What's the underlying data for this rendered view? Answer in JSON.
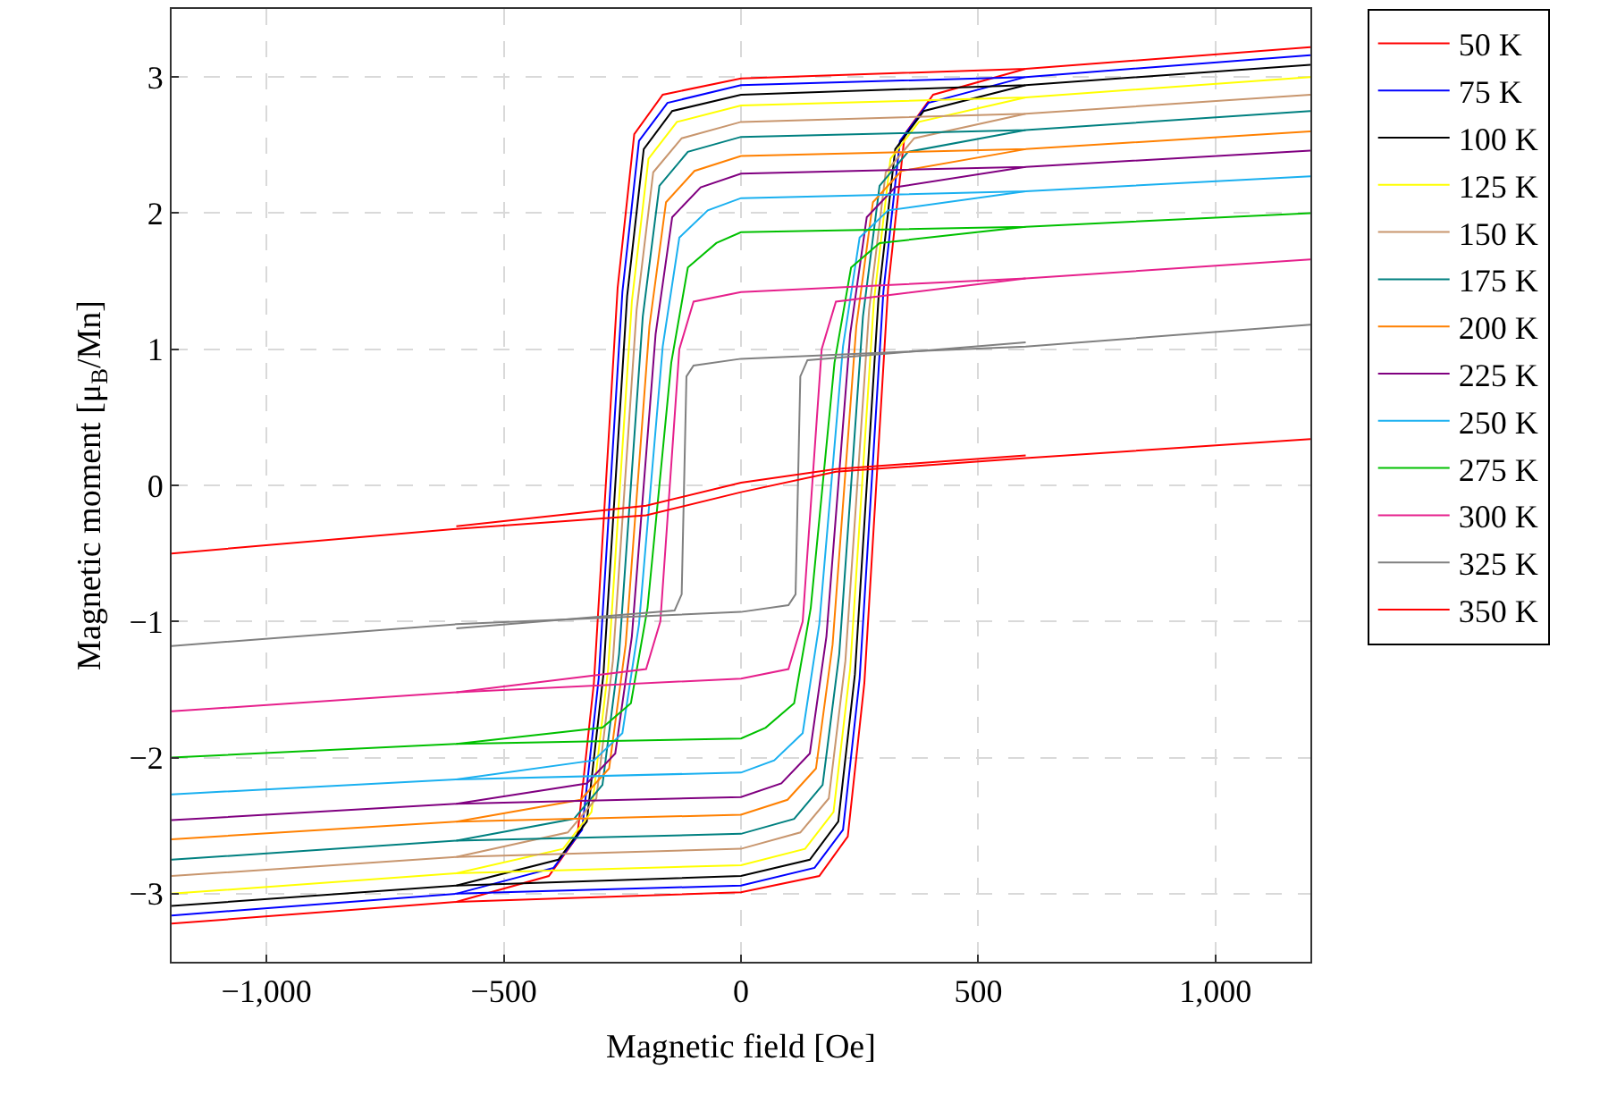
{
  "chart_data": {
    "type": "line",
    "xlabel": "Magnetic field [Oe]",
    "ylabel": "Magnetic moment [μ$_{B}$/Mn]",
    "xlim": [
      -1200,
      1200
    ],
    "xticks": [
      {
        "value": -1000,
        "label": "−1,000"
      },
      {
        "value": -500,
        "label": "−500"
      },
      0,
      500,
      {
        "value": 1000,
        "label": "1,000"
      }
    ],
    "ylim": [
      -3.5,
      3.5
    ],
    "yticks": [
      {
        "value": -3,
        "label": "−3"
      },
      {
        "value": -2,
        "label": "−2"
      },
      {
        "value": -1,
        "label": "−1"
      },
      0,
      1,
      2,
      3
    ],
    "grid": true,
    "legend": "top right",
    "marker": "none",
    "line_style": "solid",
    "series": [
      {
        "name": "50 K",
        "color": "#ff0000",
        "x": [
          -1200,
          -600,
          0,
          165,
          225,
          260,
          285,
          310,
          345,
          405,
          600
        ],
        "values": [
          -3.22,
          -3.06,
          -2.99,
          -2.87,
          -2.58,
          -1.45,
          0,
          1.45,
          2.58,
          2.87,
          3.06
        ]
      },
      {
        "color": "#ff0000",
        "x": [
          -600,
          -405,
          -345,
          -310,
          -285,
          -260,
          -225,
          -165,
          0,
          600,
          1200
        ],
        "values": [
          -3.06,
          -2.87,
          -2.58,
          -1.45,
          0,
          1.45,
          2.58,
          2.87,
          2.99,
          3.06,
          3.22
        ]
      },
      {
        "name": "75 K",
        "color": "#0000ff",
        "x": [
          -1200,
          -600,
          0,
          155,
          215,
          250,
          275,
          300,
          335,
          395,
          600
        ],
        "values": [
          -3.16,
          -3.0,
          -2.94,
          -2.81,
          -2.53,
          -1.42,
          0,
          1.42,
          2.53,
          2.81,
          3.0
        ]
      },
      {
        "color": "#0000ff",
        "x": [
          -600,
          -395,
          -335,
          -300,
          -275,
          -250,
          -215,
          -155,
          0,
          600,
          1200
        ],
        "values": [
          -3.0,
          -2.81,
          -2.53,
          -1.42,
          0,
          1.42,
          2.53,
          2.81,
          2.94,
          3.0,
          3.16
        ]
      },
      {
        "name": "100 K",
        "color": "#000000",
        "x": [
          -1200,
          -600,
          0,
          145,
          205,
          240,
          265,
          290,
          325,
          385,
          600
        ],
        "values": [
          -3.09,
          -2.94,
          -2.87,
          -2.75,
          -2.47,
          -1.39,
          0,
          1.39,
          2.47,
          2.75,
          2.94
        ]
      },
      {
        "color": "#000000",
        "x": [
          -600,
          -385,
          -325,
          -290,
          -265,
          -240,
          -205,
          -145,
          0,
          600,
          1200
        ],
        "values": [
          -2.94,
          -2.75,
          -2.47,
          -1.39,
          0,
          1.39,
          2.47,
          2.75,
          2.87,
          2.94,
          3.09
        ]
      },
      {
        "name": "125 K",
        "color": "#ffff00",
        "x": [
          -1200,
          -600,
          0,
          135,
          195,
          230,
          255,
          280,
          315,
          375,
          600
        ],
        "values": [
          -3.0,
          -2.85,
          -2.79,
          -2.67,
          -2.4,
          -1.35,
          0,
          1.35,
          2.4,
          2.67,
          2.85
        ]
      },
      {
        "color": "#ffff00",
        "x": [
          -600,
          -375,
          -315,
          -280,
          -255,
          -230,
          -195,
          -135,
          0,
          600,
          1200
        ],
        "values": [
          -2.85,
          -2.67,
          -2.4,
          -1.35,
          0,
          1.35,
          2.4,
          2.67,
          2.79,
          2.85,
          3.0
        ]
      },
      {
        "name": "150 K",
        "color": "#c8966e",
        "x": [
          -1200,
          -600,
          0,
          125,
          185,
          220,
          245,
          270,
          305,
          365,
          600
        ],
        "values": [
          -2.87,
          -2.73,
          -2.67,
          -2.55,
          -2.3,
          -1.29,
          0,
          1.29,
          2.3,
          2.55,
          2.73
        ]
      },
      {
        "color": "#c8966e",
        "x": [
          -600,
          -365,
          -305,
          -270,
          -245,
          -220,
          -185,
          -125,
          0,
          600,
          1200
        ],
        "values": [
          -2.73,
          -2.55,
          -2.3,
          -1.29,
          0,
          1.29,
          2.3,
          2.55,
          2.67,
          2.73,
          2.87
        ]
      },
      {
        "name": "175 K",
        "color": "#008080",
        "x": [
          -1200,
          -600,
          0,
          112,
          172,
          207,
          232,
          257,
          292,
          352,
          600
        ],
        "values": [
          -2.75,
          -2.61,
          -2.56,
          -2.45,
          -2.2,
          -1.24,
          0,
          1.24,
          2.2,
          2.45,
          2.61
        ]
      },
      {
        "color": "#008080",
        "x": [
          -600,
          -352,
          -292,
          -257,
          -232,
          -207,
          -172,
          -112,
          0,
          600,
          1200
        ],
        "values": [
          -2.61,
          -2.45,
          -2.2,
          -1.24,
          0,
          1.24,
          2.2,
          2.45,
          2.56,
          2.61,
          2.75
        ]
      },
      {
        "name": "200 K",
        "color": "#ff8000",
        "x": [
          -1200,
          -600,
          0,
          98,
          158,
          193,
          218,
          243,
          278,
          338,
          600
        ],
        "values": [
          -2.6,
          -2.47,
          -2.42,
          -2.31,
          -2.08,
          -1.17,
          0,
          1.17,
          2.08,
          2.31,
          2.47
        ]
      },
      {
        "color": "#ff8000",
        "x": [
          -600,
          -338,
          -278,
          -243,
          -218,
          -193,
          -158,
          -98,
          0,
          600,
          1200
        ],
        "values": [
          -2.47,
          -2.31,
          -2.08,
          -1.17,
          0,
          1.17,
          2.08,
          2.31,
          2.42,
          2.47,
          2.6
        ]
      },
      {
        "name": "225 K",
        "color": "#800080",
        "x": [
          -1200,
          -600,
          0,
          85,
          145,
          180,
          205,
          230,
          265,
          325,
          600
        ],
        "values": [
          -2.46,
          -2.34,
          -2.29,
          -2.19,
          -1.97,
          -1.11,
          0,
          1.11,
          1.97,
          2.19,
          2.34
        ]
      },
      {
        "color": "#800080",
        "x": [
          -600,
          -325,
          -265,
          -230,
          -205,
          -180,
          -145,
          -85,
          0,
          600,
          1200
        ],
        "values": [
          -2.34,
          -2.19,
          -1.97,
          -1.11,
          0,
          1.11,
          1.97,
          2.19,
          2.29,
          2.34,
          2.46
        ]
      },
      {
        "name": "250 K",
        "color": "#1ab0f0",
        "x": [
          -1200,
          -600,
          0,
          70,
          130,
          165,
          190,
          215,
          250,
          310,
          600
        ],
        "values": [
          -2.27,
          -2.16,
          -2.11,
          -2.02,
          -1.82,
          -1.02,
          0,
          1.02,
          1.82,
          2.02,
          2.16
        ]
      },
      {
        "color": "#1ab0f0",
        "x": [
          -600,
          -310,
          -250,
          -215,
          -190,
          -165,
          -130,
          -70,
          0,
          600,
          1200
        ],
        "values": [
          -2.16,
          -2.02,
          -1.82,
          -1.02,
          0,
          1.02,
          1.82,
          2.02,
          2.11,
          2.16,
          2.27
        ]
      },
      {
        "name": "275 K",
        "color": "#00c000",
        "x": [
          -1200,
          -600,
          0,
          52,
          112,
          147,
          172,
          197,
          232,
          292,
          600
        ],
        "values": [
          -2.0,
          -1.9,
          -1.86,
          -1.78,
          -1.6,
          -0.9,
          0,
          0.9,
          1.6,
          1.78,
          1.9
        ]
      },
      {
        "color": "#00c000",
        "x": [
          -600,
          -292,
          -232,
          -197,
          -172,
          -147,
          -112,
          -52,
          0,
          600,
          1200
        ],
        "values": [
          -1.9,
          -1.78,
          -1.6,
          -0.9,
          0,
          0.9,
          1.6,
          1.78,
          1.86,
          1.9,
          2.0
        ]
      },
      {
        "name": "300 K",
        "color": "#e6208c",
        "x": [
          -1200,
          -600,
          0,
          100,
          130,
          150,
          170,
          200,
          600
        ],
        "values": [
          -1.66,
          -1.52,
          -1.42,
          -1.35,
          -1.0,
          0,
          1.0,
          1.35,
          1.52
        ]
      },
      {
        "color": "#e6208c",
        "x": [
          -600,
          -200,
          -170,
          -150,
          -130,
          -100,
          0,
          600,
          1200
        ],
        "values": [
          -1.52,
          -1.35,
          -1.0,
          0,
          1.0,
          1.35,
          1.42,
          1.52,
          1.66
        ]
      },
      {
        "name": "325 K",
        "color": "#808080",
        "x": [
          -1200,
          -600,
          0,
          100,
          115,
          120,
          125,
          140,
          600
        ],
        "values": [
          -1.18,
          -1.02,
          -0.93,
          -0.88,
          -0.8,
          0,
          0.8,
          0.92,
          1.05
        ]
      },
      {
        "color": "#808080",
        "x": [
          -600,
          -140,
          -125,
          -120,
          -115,
          -100,
          0,
          600,
          1200
        ],
        "values": [
          -1.05,
          -0.92,
          -0.8,
          0,
          0.8,
          0.88,
          0.93,
          1.02,
          1.18
        ]
      },
      {
        "name": "350 K",
        "color": "#ff0000",
        "x": [
          -1200,
          -600,
          -200,
          0,
          200,
          600,
          1200
        ],
        "values": [
          -0.5,
          -0.32,
          -0.22,
          -0.05,
          0.1,
          0.2,
          0.34
        ]
      },
      {
        "color": "#ff0000",
        "x": [
          -600,
          -200,
          0,
          200,
          600
        ],
        "values": [
          -0.3,
          -0.15,
          0.02,
          0.12,
          0.22
        ]
      }
    ]
  }
}
